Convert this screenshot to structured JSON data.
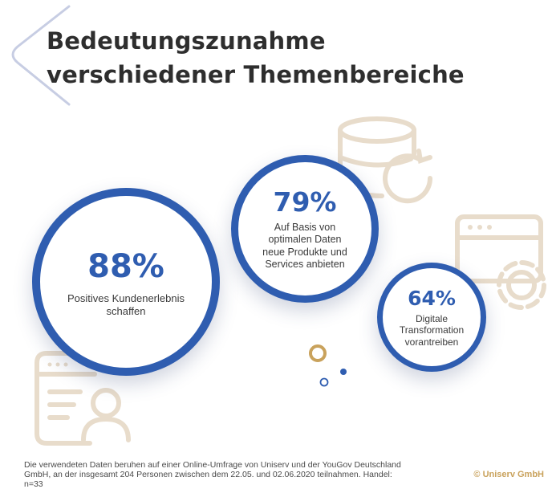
{
  "title_line1": "Bedeutungszunahme",
  "title_line2": "verschiedener Themenbereiche",
  "chart_data": {
    "type": "bubble",
    "categories": [
      "Positives Kundenerlebnis schaffen",
      "Auf Basis von optimalen Daten neue Produkte und Services anbieten",
      "Digitale Transformation vorantreiben"
    ],
    "values": [
      88,
      79,
      64
    ],
    "value_labels": [
      "88%",
      "79%",
      "64%"
    ],
    "unit": "%"
  },
  "footnote": "Die verwendeten Daten beruhen auf einer Online-Umfrage von Uniserv und der YouGov Deutschland GmbH, an der insgesamt 204 Personen zwischen dem 22.05. und 02.06.2020 teilnahmen. Handel: n=33",
  "copyright": "© Uniserv GmbH",
  "colors": {
    "accent": "#2f5db0",
    "decor": "#e8dccb",
    "brand": "#c9a25c",
    "chevron": "#c7cde3"
  },
  "icons": {
    "database": "database-sync-icon",
    "settings": "browser-gear-icon",
    "user": "user-profile-icon",
    "chevron": "chevron-left-icon"
  }
}
